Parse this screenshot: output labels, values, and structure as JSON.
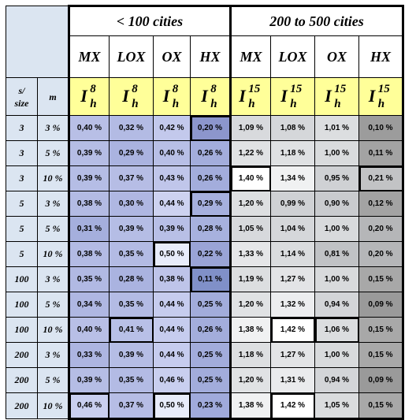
{
  "groups": {
    "left": "< 100 cities",
    "right": "200 to 500 cities"
  },
  "methods": [
    "MX",
    "LOX",
    "OX",
    "HX",
    "MX",
    "LOX",
    "OX",
    "HX"
  ],
  "row_headers": {
    "s_label": "s/\nsize",
    "m_label": "m"
  },
  "index": {
    "base": "I",
    "sub": "h",
    "sup_left": "8",
    "sup_right": "15"
  },
  "rows": [
    {
      "s": "3",
      "m": "3 %",
      "v": [
        "0,40 %",
        "0,32 %",
        "0,42 %",
        "0,20 %",
        "1,09 %",
        "1,08 %",
        "1,01 %",
        "0,10 %"
      ]
    },
    {
      "s": "3",
      "m": "5 %",
      "v": [
        "0,39 %",
        "0,29 %",
        "0,40 %",
        "0,26 %",
        "1,22 %",
        "1,18 %",
        "1,00 %",
        "0,11 %"
      ]
    },
    {
      "s": "3",
      "m": "10 %",
      "v": [
        "0,39 %",
        "0,37 %",
        "0,43 %",
        "0,26 %",
        "1,40 %",
        "1,34 %",
        "0,95 %",
        "0,21 %"
      ]
    },
    {
      "s": "5",
      "m": "3 %",
      "v": [
        "0,38 %",
        "0,30 %",
        "0,44 %",
        "0,29 %",
        "1,20 %",
        "0,99 %",
        "0,90 %",
        "0,12 %"
      ]
    },
    {
      "s": "5",
      "m": "5 %",
      "v": [
        "0,31 %",
        "0,39 %",
        "0,39 %",
        "0,28 %",
        "1,05 %",
        "1,04 %",
        "1,00 %",
        "0,20 %"
      ]
    },
    {
      "s": "5",
      "m": "10 %",
      "v": [
        "0,38 %",
        "0,35 %",
        "0,50 %",
        "0,22 %",
        "1,33 %",
        "1,14 %",
        "0,81 %",
        "0,20 %"
      ]
    },
    {
      "s": "100",
      "m": "3 %",
      "v": [
        "0,35 %",
        "0,28 %",
        "0,38 %",
        "0,11 %",
        "1,19 %",
        "1,27 %",
        "1,00 %",
        "0,15 %"
      ]
    },
    {
      "s": "100",
      "m": "5 %",
      "v": [
        "0,34 %",
        "0,35 %",
        "0,44 %",
        "0,25 %",
        "1,20 %",
        "1,32 %",
        "0,94 %",
        "0,09 %"
      ]
    },
    {
      "s": "100",
      "m": "10 %",
      "v": [
        "0,40 %",
        "0,41 %",
        "0,44 %",
        "0,26 %",
        "1,38 %",
        "1,42 %",
        "1,06 %",
        "0,15 %"
      ]
    },
    {
      "s": "200",
      "m": "3 %",
      "v": [
        "0,33 %",
        "0,39 %",
        "0,44 %",
        "0,25 %",
        "1,18 %",
        "1,27 %",
        "1,00 %",
        "0,15 %"
      ]
    },
    {
      "s": "200",
      "m": "5 %",
      "v": [
        "0,39 %",
        "0,35 %",
        "0,46 %",
        "0,25 %",
        "1,20 %",
        "1,31 %",
        "0,94 %",
        "0,09 %"
      ]
    },
    {
      "s": "200",
      "m": "10 %",
      "v": [
        "0,46 %",
        "0,37 %",
        "0,50 %",
        "0,23 %",
        "1,38 %",
        "1,42 %",
        "1,05 %",
        "0,15 %"
      ]
    }
  ],
  "cell_colors": [
    [
      "#b8bfe6",
      "#b3bbe4",
      "#c3c9ec",
      "#8c96cc",
      "#d8dadd",
      "#d5d7da",
      "#dcdee0",
      "#9c9c9c"
    ],
    [
      "#b5bde5",
      "#aab3e0",
      "#b8bfe6",
      "#a3addc",
      "#e0e2e4",
      "#dfe1e3",
      "#d9dbdd",
      "#a3a3a3"
    ],
    [
      "#b5bde5",
      "#b6bde5",
      "#c0c6ea",
      "#a3addc",
      "#ffffff",
      "#f0f1f2",
      "#cfd1d4",
      "#c2c3c5"
    ],
    [
      "#b3bbe4",
      "#afb7e2",
      "#cdd2f0",
      "#a6b0de",
      "#dddfe1",
      "#cfd1d4",
      "#c9cbce",
      "#a3a3a3"
    ],
    [
      "#a5afdd",
      "#b5bde5",
      "#b8bfe6",
      "#a7b1de",
      "#d7d9dc",
      "#d5d7da",
      "#d8dadc",
      "#b5b6b8"
    ],
    [
      "#b3bbe4",
      "#b3bbe4",
      "#e8ecfa",
      "#9aa4d6",
      "#e5e6e8",
      "#dadcde",
      "#c0c2c5",
      "#b5b6b8"
    ],
    [
      "#b1b9e3",
      "#aab3e0",
      "#bec4e9",
      "#8090c8",
      "#dcdee0",
      "#e3e4e6",
      "#d8dadc",
      "#a8a8a8"
    ],
    [
      "#afb7e2",
      "#b3bbe4",
      "#c6ccee",
      "#a2acdb",
      "#e0e2e4",
      "#ecedef",
      "#d3d5d8",
      "#9a9a9a"
    ],
    [
      "#b8bfe6",
      "#b8c0e7",
      "#c6ccee",
      "#a3addc",
      "#f0f1f2",
      "#ffffff",
      "#dbdddf",
      "#a8a8a8"
    ],
    [
      "#adb5e1",
      "#b5bde5",
      "#c6ccee",
      "#a2acdb",
      "#dddfe1",
      "#e3e4e6",
      "#d8dadc",
      "#a8a8a8"
    ],
    [
      "#b5bde5",
      "#b3bbe4",
      "#c9cfef",
      "#a2acdb",
      "#e0e2e4",
      "#eaebed",
      "#d3d5d8",
      "#9a9a9a"
    ],
    [
      "#c9cfef",
      "#b6bde5",
      "#e8ecfa",
      "#a0aadb",
      "#f0f1f2",
      "#ffffff",
      "#dadcde",
      "#a8a8a8"
    ]
  ],
  "highlighted_cells": [
    [
      0,
      3
    ],
    [
      2,
      4
    ],
    [
      2,
      7
    ],
    [
      3,
      3
    ],
    [
      5,
      2
    ],
    [
      6,
      3
    ],
    [
      8,
      1
    ],
    [
      8,
      5
    ],
    [
      8,
      6
    ],
    [
      11,
      0
    ],
    [
      11,
      2
    ],
    [
      11,
      5
    ]
  ]
}
